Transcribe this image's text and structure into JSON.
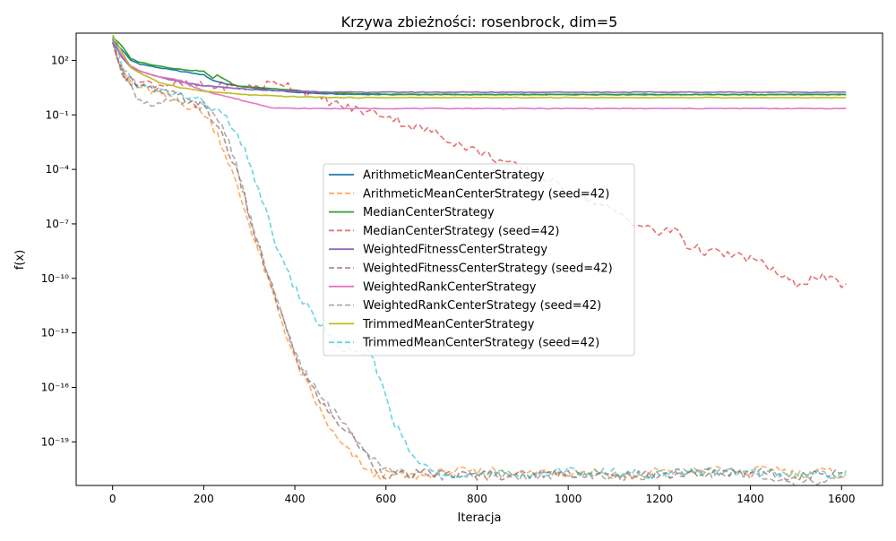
{
  "chart_data": {
    "type": "line",
    "title": "Krzywa zbieżności: rosenbrock, dim=5",
    "xlabel": "Iteracja",
    "ylabel": "f(x)",
    "xlim": [
      -80,
      1690
    ],
    "ylim_log10": [
      -21.4,
      3.5
    ],
    "yscale": "log",
    "grid": false,
    "legend_position": "center",
    "x_ticks": [
      0,
      200,
      400,
      600,
      800,
      1000,
      1200,
      1400,
      1600
    ],
    "y_ticks": [
      {
        "exp": 2,
        "label": "10²"
      },
      {
        "exp": -1,
        "label": "10⁻¹"
      },
      {
        "exp": -4,
        "label": "10⁻⁴"
      },
      {
        "exp": -7,
        "label": "10⁻⁷"
      },
      {
        "exp": -10,
        "label": "10⁻¹⁰"
      },
      {
        "exp": -13,
        "label": "10⁻¹³"
      },
      {
        "exp": -16,
        "label": "10⁻¹⁶"
      },
      {
        "exp": -19,
        "label": "10⁻¹⁹"
      }
    ],
    "series": [
      {
        "name": "ArithmeticMeanCenterStrategy",
        "color": "#1f77b4",
        "style": "solid",
        "points": [
          [
            0,
            3.1
          ],
          [
            20,
            2.6
          ],
          [
            40,
            2.0
          ],
          [
            60,
            1.8
          ],
          [
            80,
            1.7
          ],
          [
            100,
            1.6
          ],
          [
            150,
            1.4
          ],
          [
            200,
            1.2
          ],
          [
            220,
            0.9
          ],
          [
            250,
            0.7
          ],
          [
            300,
            0.5
          ],
          [
            350,
            0.35
          ],
          [
            400,
            0.25
          ],
          [
            450,
            0.18
          ],
          [
            500,
            0.14
          ],
          [
            600,
            0.12
          ],
          [
            800,
            0.12
          ],
          [
            1000,
            0.12
          ],
          [
            1200,
            0.12
          ],
          [
            1400,
            0.12
          ],
          [
            1610,
            0.12
          ]
        ]
      },
      {
        "name": "ArithmeticMeanCenterStrategy (seed=42)",
        "color": "#ff7f0e",
        "style": "dashed",
        "points": [
          [
            0,
            3.0
          ],
          [
            20,
            1.5
          ],
          [
            40,
            0.8
          ],
          [
            60,
            0.5
          ],
          [
            100,
            0.2
          ],
          [
            150,
            -0.3
          ],
          [
            200,
            -0.9
          ],
          [
            230,
            -2.0
          ],
          [
            260,
            -4.0
          ],
          [
            280,
            -5.5
          ],
          [
            300,
            -7.0
          ],
          [
            320,
            -8.5
          ],
          [
            340,
            -10.0
          ],
          [
            360,
            -11.5
          ],
          [
            380,
            -13.0
          ],
          [
            400,
            -14.5
          ],
          [
            420,
            -15.5
          ],
          [
            440,
            -16.5
          ],
          [
            460,
            -17.5
          ],
          [
            490,
            -18.8
          ],
          [
            520,
            -19.6
          ],
          [
            550,
            -20.3
          ],
          [
            560,
            -20.6
          ],
          [
            580,
            -20.9
          ],
          [
            600,
            -20.8
          ],
          [
            650,
            -20.9
          ],
          [
            700,
            -20.8
          ],
          [
            750,
            -20.6
          ],
          [
            800,
            -20.7
          ],
          [
            850,
            -20.5
          ],
          [
            900,
            -20.8
          ],
          [
            950,
            -20.6
          ],
          [
            1000,
            -20.7
          ],
          [
            1050,
            -20.6
          ],
          [
            1100,
            -20.8
          ],
          [
            1150,
            -20.9
          ],
          [
            1200,
            -20.6
          ],
          [
            1250,
            -20.7
          ],
          [
            1300,
            -20.5
          ],
          [
            1350,
            -20.6
          ],
          [
            1400,
            -20.7
          ],
          [
            1450,
            -20.4
          ],
          [
            1500,
            -20.8
          ],
          [
            1550,
            -20.6
          ],
          [
            1600,
            -20.8
          ],
          [
            1610,
            -20.9
          ]
        ]
      },
      {
        "name": "MedianCenterStrategy",
        "color": "#2ca02c",
        "style": "solid",
        "points": [
          [
            0,
            3.3
          ],
          [
            20,
            2.8
          ],
          [
            40,
            2.1
          ],
          [
            60,
            1.9
          ],
          [
            80,
            1.8
          ],
          [
            100,
            1.7
          ],
          [
            150,
            1.5
          ],
          [
            200,
            1.4
          ],
          [
            220,
            1.0
          ],
          [
            230,
            1.2
          ],
          [
            250,
            0.9
          ],
          [
            270,
            0.6
          ],
          [
            300,
            0.55
          ],
          [
            350,
            0.45
          ],
          [
            400,
            0.35
          ],
          [
            450,
            0.25
          ],
          [
            500,
            0.18
          ],
          [
            600,
            0.14
          ],
          [
            800,
            0.12
          ],
          [
            1000,
            0.12
          ],
          [
            1200,
            0.12
          ],
          [
            1400,
            0.12
          ],
          [
            1610,
            0.12
          ]
        ]
      },
      {
        "name": "MedianCenterStrategy (seed=42)",
        "color": "#d62728",
        "style": "dashed",
        "points": [
          [
            0,
            3.0
          ],
          [
            30,
            1.0
          ],
          [
            60,
            0.8
          ],
          [
            100,
            0.7
          ],
          [
            200,
            0.6
          ],
          [
            300,
            0.5
          ],
          [
            370,
            0.8
          ],
          [
            400,
            0.5
          ],
          [
            450,
            0.0
          ],
          [
            500,
            -0.5
          ],
          [
            550,
            -0.8
          ],
          [
            600,
            -1.0
          ],
          [
            650,
            -1.6
          ],
          [
            700,
            -1.9
          ],
          [
            750,
            -2.5
          ],
          [
            800,
            -3.0
          ],
          [
            850,
            -3.5
          ],
          [
            900,
            -4.0
          ],
          [
            950,
            -4.5
          ],
          [
            1000,
            -5.2
          ],
          [
            1050,
            -5.7
          ],
          [
            1100,
            -6.3
          ],
          [
            1150,
            -7.0
          ],
          [
            1200,
            -7.5
          ],
          [
            1240,
            -7.3
          ],
          [
            1260,
            -8.2
          ],
          [
            1300,
            -8.5
          ],
          [
            1350,
            -8.7
          ],
          [
            1400,
            -8.9
          ],
          [
            1450,
            -9.5
          ],
          [
            1470,
            -10.0
          ],
          [
            1500,
            -10.3
          ],
          [
            1550,
            -9.9
          ],
          [
            1600,
            -10.3
          ],
          [
            1610,
            -10.3
          ]
        ]
      },
      {
        "name": "WeightedFitnessCenterStrategy",
        "color": "#9467bd",
        "style": "solid",
        "points": [
          [
            0,
            3.0
          ],
          [
            20,
            2.2
          ],
          [
            40,
            1.6
          ],
          [
            60,
            1.4
          ],
          [
            100,
            1.1
          ],
          [
            150,
            0.8
          ],
          [
            200,
            0.6
          ],
          [
            250,
            0.5
          ],
          [
            300,
            0.4
          ],
          [
            400,
            0.3
          ],
          [
            500,
            0.25
          ],
          [
            600,
            0.25
          ],
          [
            800,
            0.25
          ],
          [
            1000,
            0.25
          ],
          [
            1200,
            0.25
          ],
          [
            1400,
            0.25
          ],
          [
            1610,
            0.25
          ]
        ]
      },
      {
        "name": "WeightedFitnessCenterStrategy (seed=42)",
        "color": "#8c564b",
        "style": "dashed",
        "points": [
          [
            0,
            3.2
          ],
          [
            20,
            1.5
          ],
          [
            40,
            0.8
          ],
          [
            60,
            0.5
          ],
          [
            100,
            0.3
          ],
          [
            150,
            0.0
          ],
          [
            200,
            -0.6
          ],
          [
            240,
            -2.0
          ],
          [
            270,
            -4.0
          ],
          [
            290,
            -5.5
          ],
          [
            310,
            -7.5
          ],
          [
            330,
            -9.0
          ],
          [
            350,
            -10.5
          ],
          [
            370,
            -12.0
          ],
          [
            390,
            -13.5
          ],
          [
            410,
            -14.8
          ],
          [
            430,
            -15.7
          ],
          [
            450,
            -16.5
          ],
          [
            480,
            -17.6
          ],
          [
            520,
            -18.5
          ],
          [
            550,
            -19.5
          ],
          [
            580,
            -20.5
          ],
          [
            600,
            -20.8
          ],
          [
            650,
            -20.8
          ],
          [
            700,
            -20.7
          ],
          [
            800,
            -20.9
          ],
          [
            900,
            -20.8
          ],
          [
            1000,
            -20.7
          ],
          [
            1100,
            -20.9
          ],
          [
            1200,
            -20.8
          ],
          [
            1300,
            -20.8
          ],
          [
            1400,
            -20.6
          ],
          [
            1500,
            -20.9
          ],
          [
            1610,
            -20.6
          ]
        ]
      },
      {
        "name": "WeightedRankCenterStrategy",
        "color": "#e377c2",
        "style": "solid",
        "points": [
          [
            0,
            3.1
          ],
          [
            20,
            2.3
          ],
          [
            40,
            1.7
          ],
          [
            60,
            1.4
          ],
          [
            100,
            1.1
          ],
          [
            150,
            0.9
          ],
          [
            180,
            0.5
          ],
          [
            220,
            0.2
          ],
          [
            300,
            -0.3
          ],
          [
            350,
            -0.6
          ],
          [
            400,
            -0.65
          ],
          [
            600,
            -0.65
          ],
          [
            800,
            -0.65
          ],
          [
            1000,
            -0.65
          ],
          [
            1200,
            -0.65
          ],
          [
            1400,
            -0.65
          ],
          [
            1610,
            -0.65
          ]
        ]
      },
      {
        "name": "WeightedRankCenterStrategy (seed=42)",
        "color": "#7f7f7f",
        "style": "dashed",
        "points": [
          [
            0,
            3.0
          ],
          [
            20,
            1.5
          ],
          [
            40,
            0.5
          ],
          [
            60,
            -0.2
          ],
          [
            100,
            -0.4
          ],
          [
            150,
            -0.3
          ],
          [
            200,
            -0.5
          ],
          [
            240,
            -1.5
          ],
          [
            270,
            -3.5
          ],
          [
            290,
            -5.5
          ],
          [
            310,
            -7.5
          ],
          [
            330,
            -9.0
          ],
          [
            350,
            -10.5
          ],
          [
            370,
            -12.0
          ],
          [
            390,
            -13.5
          ],
          [
            410,
            -14.5
          ],
          [
            430,
            -15.5
          ],
          [
            450,
            -16.3
          ],
          [
            480,
            -17.2
          ],
          [
            520,
            -18.3
          ],
          [
            560,
            -19.5
          ],
          [
            600,
            -20.5
          ],
          [
            650,
            -20.8
          ],
          [
            700,
            -20.9
          ],
          [
            800,
            -20.8
          ],
          [
            900,
            -20.9
          ],
          [
            1000,
            -20.8
          ],
          [
            1100,
            -20.9
          ],
          [
            1200,
            -20.8
          ],
          [
            1300,
            -20.7
          ],
          [
            1400,
            -20.8
          ],
          [
            1500,
            -21.4
          ],
          [
            1610,
            -20.8
          ]
        ]
      },
      {
        "name": "TrimmedMeanCenterStrategy",
        "color": "#bcbd22",
        "style": "solid",
        "points": [
          [
            0,
            3.4
          ],
          [
            20,
            2.5
          ],
          [
            40,
            1.6
          ],
          [
            60,
            1.3
          ],
          [
            100,
            0.8
          ],
          [
            150,
            0.5
          ],
          [
            200,
            0.3
          ],
          [
            300,
            0.1
          ],
          [
            400,
            0.0
          ],
          [
            500,
            -0.05
          ],
          [
            600,
            -0.05
          ],
          [
            800,
            -0.05
          ],
          [
            1000,
            -0.05
          ],
          [
            1200,
            -0.05
          ],
          [
            1400,
            -0.05
          ],
          [
            1610,
            -0.05
          ]
        ]
      },
      {
        "name": "TrimmedMeanCenterStrategy (seed=42)",
        "color": "#17becf",
        "style": "dashed",
        "points": [
          [
            0,
            3.2
          ],
          [
            20,
            1.8
          ],
          [
            40,
            1.0
          ],
          [
            60,
            0.6
          ],
          [
            100,
            0.3
          ],
          [
            150,
            0.1
          ],
          [
            200,
            -0.3
          ],
          [
            250,
            -1.2
          ],
          [
            290,
            -3.0
          ],
          [
            320,
            -5.0
          ],
          [
            350,
            -7.5
          ],
          [
            380,
            -9.5
          ],
          [
            410,
            -11.0
          ],
          [
            440,
            -12.0
          ],
          [
            470,
            -13.0
          ],
          [
            500,
            -13.8
          ],
          [
            540,
            -14.3
          ],
          [
            560,
            -14.0
          ],
          [
            580,
            -15.0
          ],
          [
            600,
            -16.5
          ],
          [
            620,
            -18.0
          ],
          [
            650,
            -19.5
          ],
          [
            680,
            -20.3
          ],
          [
            700,
            -20.6
          ],
          [
            800,
            -20.8
          ],
          [
            900,
            -20.8
          ],
          [
            1000,
            -20.6
          ],
          [
            1100,
            -20.7
          ],
          [
            1200,
            -20.8
          ],
          [
            1300,
            -20.6
          ],
          [
            1400,
            -20.7
          ],
          [
            1500,
            -20.8
          ],
          [
            1610,
            -20.7
          ]
        ]
      }
    ]
  }
}
